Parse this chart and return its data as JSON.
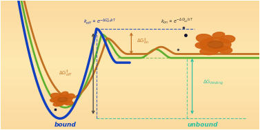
{
  "koff_label": "k$_{off}$ ∝ e$^{-ΔG^{‡}_{off}/kT}$",
  "kon_label": "k$_{on}$ ∝ e$^{-ΔG^{‡}_{on}/kT}$",
  "dG_off_label": "ΔG$^{‡}_{off}$",
  "dG_on_label": "ΔG$^{‡}_{on}$",
  "dG_binding_label": "ΔG$_{binding}$",
  "bound_label": "bound",
  "unbound_label": "unbound",
  "blue_color": "#1040c0",
  "green_color": "#60b030",
  "orange_curve_color": "#c07020",
  "protein_color": "#d06010",
  "protein_dark": "#a04808",
  "teal_color": "#30c0a0",
  "navy_color": "#1030a0",
  "bg_top": "#f8c060",
  "bg_mid": "#fde8b0",
  "bg_bot": "#f5b840",
  "text_navy": "#102898",
  "text_dark": "#302010"
}
